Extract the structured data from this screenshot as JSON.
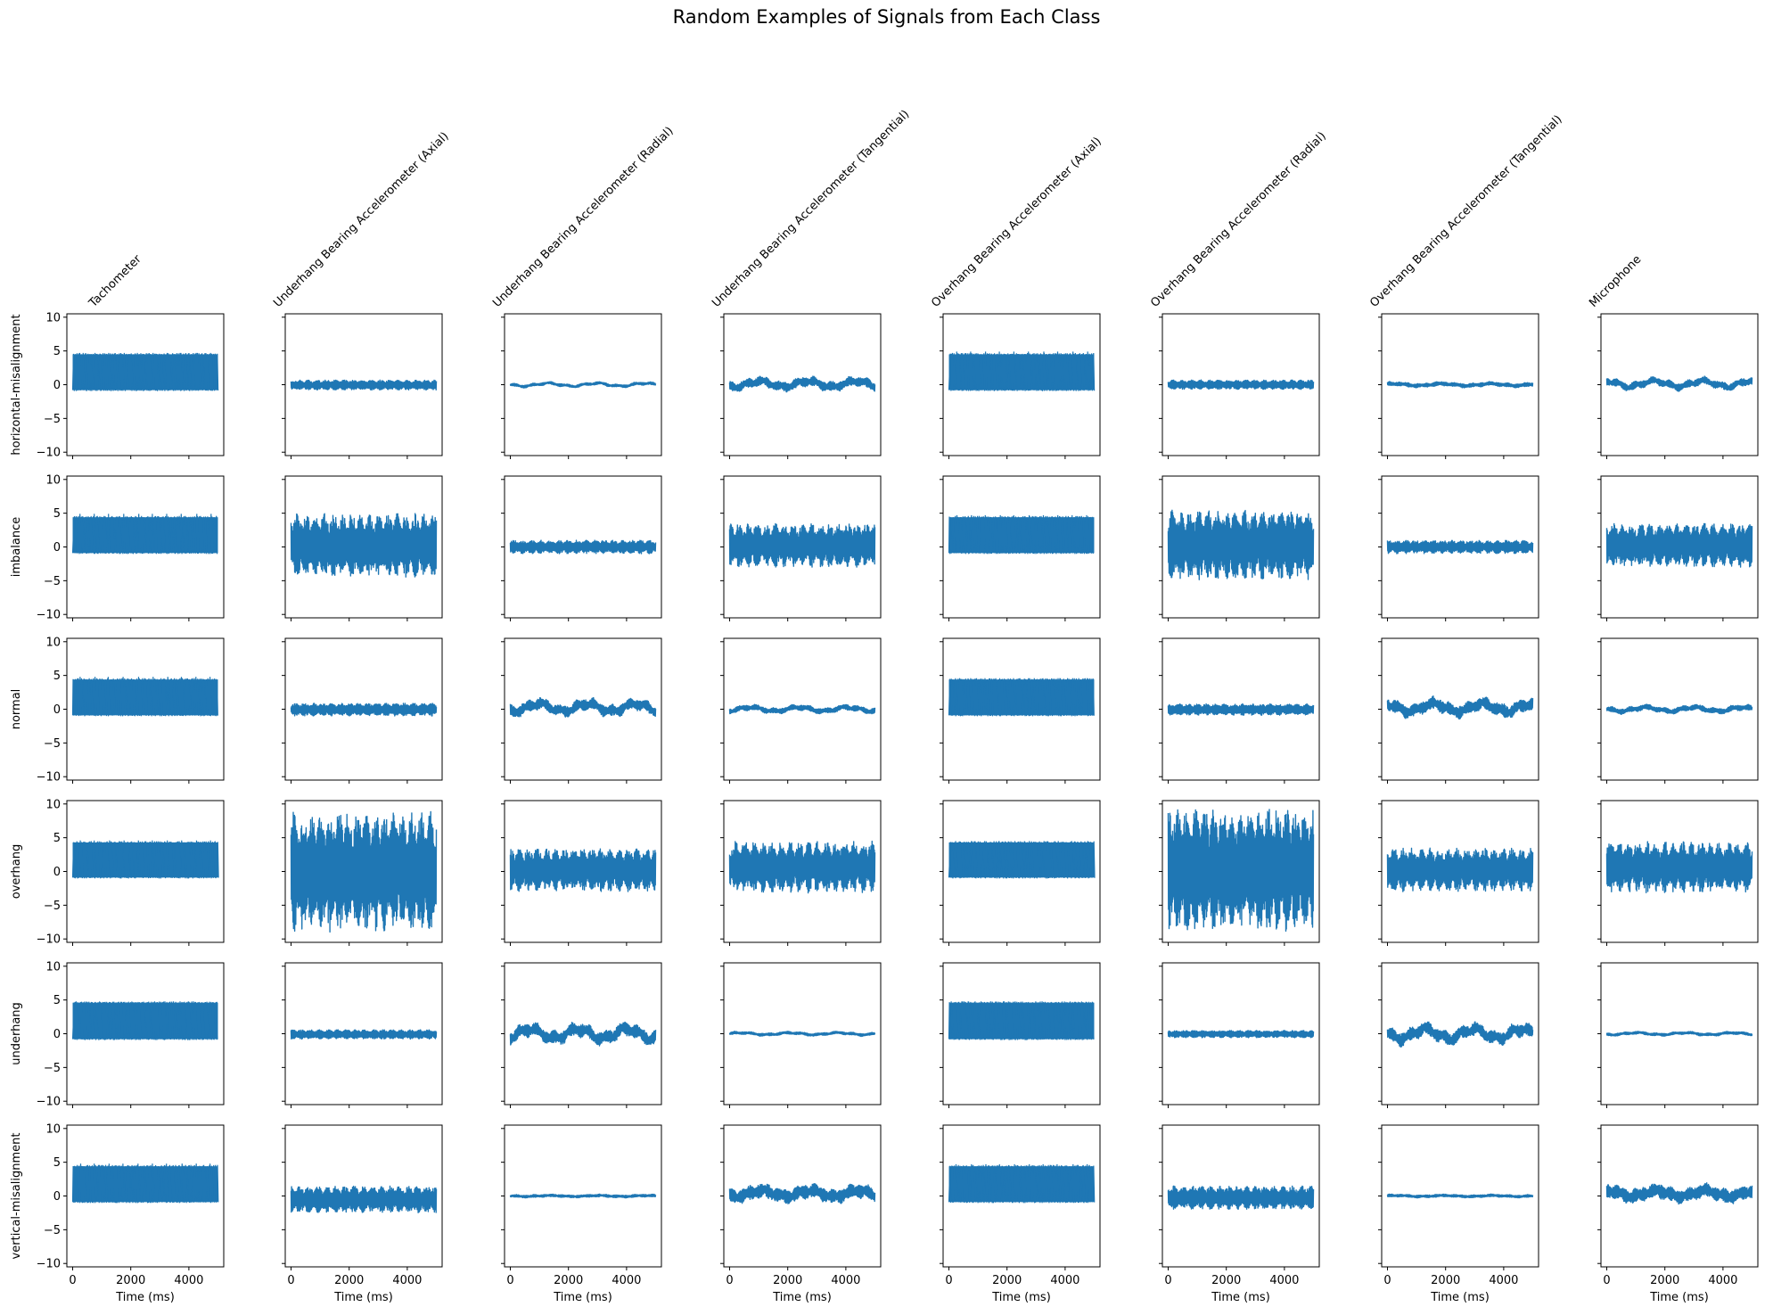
{
  "chart_data": {
    "type": "line",
    "title": "Random Examples of Signals from Each Class",
    "columns": [
      "Tachometer",
      "Underhang Bearing Accelerometer (Axial)",
      "Underhang Bearing Accelerometer (Radial)",
      "Underhang Bearing Accelerometer (Tangential)",
      "Overhang Bearing Accelerometer (Axial)",
      "Overhang Bearing Accelerometer (Radial)",
      "Overhang Bearing Accelerometer (Tangential)",
      "Microphone"
    ],
    "rows": [
      "horizontal-misalignment",
      "imbalance",
      "normal",
      "overhang",
      "underhang",
      "vertical-misalignment"
    ],
    "xlabel": "Time (ms)",
    "xlim": [
      -200,
      5200
    ],
    "ylim": [
      -10.5,
      10.5
    ],
    "xticks": [
      0,
      2000,
      4000
    ],
    "yticks": [
      10,
      5,
      0,
      -5,
      -10
    ],
    "time_range_ms": [
      0,
      5000
    ],
    "series_color": "#1f77b4",
    "grid": false,
    "panels": [
      [
        {
          "kind": "square",
          "low": -0.8,
          "high": 4.5,
          "peak": 4.7,
          "seed": 1
        },
        {
          "kind": "noise",
          "lo": -0.8,
          "hi": 0.7,
          "seed": 2
        },
        {
          "kind": "noise",
          "lo": -0.5,
          "hi": 0.5,
          "wave": 0.3,
          "seed": 3
        },
        {
          "kind": "noise",
          "lo": -1.2,
          "hi": 1.4,
          "wave": 0.6,
          "seed": 4
        },
        {
          "kind": "square",
          "low": -0.8,
          "high": 4.5,
          "peak": 4.9,
          "seed": 5
        },
        {
          "kind": "noise",
          "lo": -0.7,
          "hi": 0.7,
          "seed": 6
        },
        {
          "kind": "noise",
          "lo": -0.5,
          "hi": 0.5,
          "wave": 0.2,
          "seed": 7
        },
        {
          "kind": "noise",
          "lo": -1.0,
          "hi": 1.3,
          "wave": 0.6,
          "seed": 8
        }
      ],
      [
        {
          "kind": "square",
          "low": -0.9,
          "high": 4.4,
          "peak": 4.9,
          "seed": 11
        },
        {
          "kind": "noise",
          "lo": -4.5,
          "hi": 5.0,
          "seed": 12
        },
        {
          "kind": "noise",
          "lo": -1.0,
          "hi": 1.0,
          "seed": 13
        },
        {
          "kind": "noise",
          "lo": -3.0,
          "hi": 3.5,
          "seed": 14
        },
        {
          "kind": "square",
          "low": -0.9,
          "high": 4.4,
          "peak": 4.7,
          "seed": 15
        },
        {
          "kind": "noise",
          "lo": -5.0,
          "hi": 5.5,
          "seed": 16
        },
        {
          "kind": "noise",
          "lo": -1.0,
          "hi": 1.0,
          "seed": 17
        },
        {
          "kind": "noise",
          "lo": -3.0,
          "hi": 3.5,
          "seed": 18
        }
      ],
      [
        {
          "kind": "square",
          "low": -0.9,
          "high": 4.4,
          "peak": 4.8,
          "seed": 21
        },
        {
          "kind": "noise",
          "lo": -1.0,
          "hi": 0.9,
          "seed": 22
        },
        {
          "kind": "noise",
          "lo": -1.4,
          "hi": 1.9,
          "wave": 0.8,
          "seed": 23
        },
        {
          "kind": "noise",
          "lo": -0.8,
          "hi": 0.8,
          "wave": 0.4,
          "seed": 24
        },
        {
          "kind": "square",
          "low": -0.9,
          "high": 4.4,
          "peak": 4.6,
          "seed": 25
        },
        {
          "kind": "noise",
          "lo": -0.9,
          "hi": 0.8,
          "seed": 26
        },
        {
          "kind": "noise",
          "lo": -1.5,
          "hi": 2.0,
          "wave": 0.8,
          "seed": 27
        },
        {
          "kind": "noise",
          "lo": -0.8,
          "hi": 0.8,
          "wave": 0.4,
          "seed": 28
        }
      ],
      [
        {
          "kind": "square",
          "low": -0.9,
          "high": 4.3,
          "peak": 4.6,
          "seed": 31
        },
        {
          "kind": "noise",
          "lo": -9.0,
          "hi": 9.0,
          "seed": 32
        },
        {
          "kind": "noise",
          "lo": -3.0,
          "hi": 3.5,
          "seed": 33
        },
        {
          "kind": "noise",
          "lo": -3.2,
          "hi": 4.5,
          "seed": 34
        },
        {
          "kind": "square",
          "low": -0.9,
          "high": 4.3,
          "peak": 4.5,
          "seed": 35
        },
        {
          "kind": "noise",
          "lo": -9.0,
          "hi": 9.5,
          "seed": 36
        },
        {
          "kind": "noise",
          "lo": -3.0,
          "hi": 3.5,
          "seed": 37
        },
        {
          "kind": "noise",
          "lo": -3.2,
          "hi": 4.5,
          "seed": 38
        }
      ],
      [
        {
          "kind": "square",
          "low": -0.8,
          "high": 4.6,
          "peak": 4.7,
          "seed": 41
        },
        {
          "kind": "noise",
          "lo": -0.8,
          "hi": 0.6,
          "seed": 42
        },
        {
          "kind": "noise",
          "lo": -2.0,
          "hi": 2.0,
          "wave": 1.0,
          "seed": 43
        },
        {
          "kind": "noise",
          "lo": -0.4,
          "hi": 0.4,
          "wave": 0.2,
          "seed": 44
        },
        {
          "kind": "square",
          "low": -0.8,
          "high": 4.6,
          "peak": 4.7,
          "seed": 45
        },
        {
          "kind": "noise",
          "lo": -0.6,
          "hi": 0.5,
          "seed": 46
        },
        {
          "kind": "noise",
          "lo": -2.0,
          "hi": 2.0,
          "wave": 1.0,
          "seed": 47
        },
        {
          "kind": "noise",
          "lo": -0.4,
          "hi": 0.4,
          "wave": 0.2,
          "seed": 48
        }
      ],
      [
        {
          "kind": "square",
          "low": -0.9,
          "high": 4.4,
          "peak": 4.8,
          "seed": 51
        },
        {
          "kind": "noise",
          "lo": -2.5,
          "hi": 1.5,
          "seed": 52
        },
        {
          "kind": "noise",
          "lo": -0.3,
          "hi": 0.3,
          "wave": 0.1,
          "seed": 53
        },
        {
          "kind": "noise",
          "lo": -1.3,
          "hi": 2.0,
          "wave": 0.6,
          "seed": 54
        },
        {
          "kind": "square",
          "low": -0.9,
          "high": 4.4,
          "peak": 4.7,
          "seed": 55
        },
        {
          "kind": "noise",
          "lo": -2.0,
          "hi": 1.5,
          "seed": 56
        },
        {
          "kind": "noise",
          "lo": -0.3,
          "hi": 0.3,
          "wave": 0.1,
          "seed": 57
        },
        {
          "kind": "noise",
          "lo": -1.3,
          "hi": 2.0,
          "wave": 0.6,
          "seed": 58
        }
      ]
    ]
  }
}
